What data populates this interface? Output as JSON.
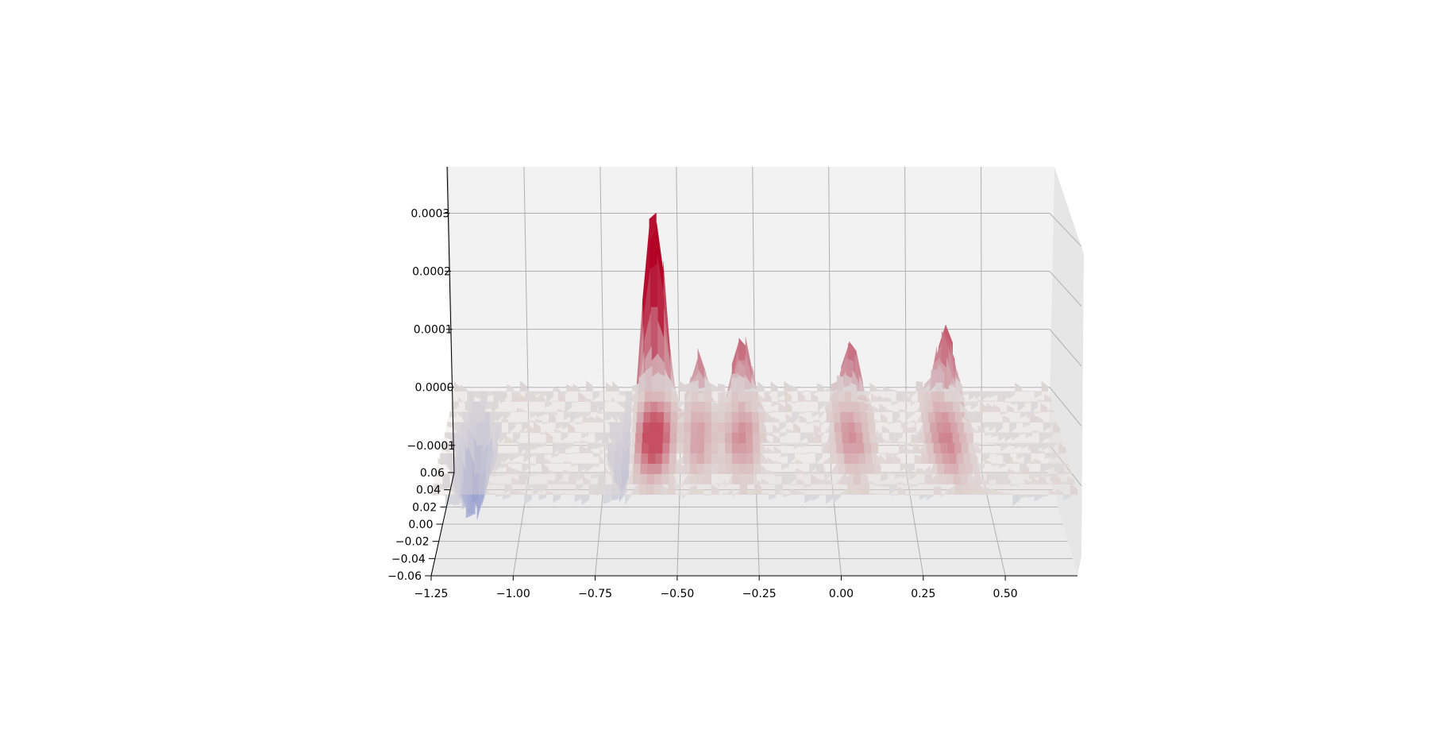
{
  "chart_data": {
    "type": "surface",
    "projection": "3d",
    "colormap": "coolwarm",
    "colors": {
      "low": "#3b4cc0",
      "mid": "#dddddd",
      "high": "#b40426",
      "pane": "#f2f2f2",
      "grid": "#b0b0b0",
      "axis": "#000000"
    },
    "title": "",
    "xlabel": "",
    "ylabel": "",
    "zlabel": "",
    "grid": true,
    "x_ticks": [
      "−1.25",
      "−1.00",
      "−0.75",
      "−0.50",
      "−0.25",
      "0.00",
      "0.25",
      "0.50"
    ],
    "x_tick_values": [
      -1.25,
      -1.0,
      -0.75,
      -0.5,
      -0.25,
      0.0,
      0.25,
      0.5
    ],
    "xlim": [
      -1.25,
      0.72
    ],
    "y_ticks": [
      "0.06",
      "0.04",
      "0.02",
      "0.00",
      "−0.02",
      "−0.04",
      "−0.06"
    ],
    "y_tick_values": [
      0.06,
      0.04,
      0.02,
      0.0,
      -0.02,
      -0.04,
      -0.06
    ],
    "ylim": [
      -0.06,
      0.06
    ],
    "z_ticks": [
      "−0.0001",
      "0.0000",
      "0.0001",
      "0.0002",
      "0.0003"
    ],
    "z_tick_values": [
      -0.0001,
      0.0,
      0.0001,
      0.0002,
      0.0003
    ],
    "zlim": [
      -0.00014,
      0.00038
    ],
    "surface_features": [
      {
        "x": -0.6,
        "z": 0.0003,
        "kind": "peak"
      },
      {
        "x": -0.55,
        "z": 0.00024,
        "kind": "peak"
      },
      {
        "x": -0.45,
        "z": 0.00018,
        "kind": "peak"
      },
      {
        "x": -0.3,
        "z": 0.00017,
        "kind": "peak"
      },
      {
        "x": 0.05,
        "z": 0.00016,
        "kind": "peak"
      },
      {
        "x": 0.35,
        "z": 0.0002,
        "kind": "peak"
      },
      {
        "x": -0.65,
        "z": -0.00013,
        "kind": "trough"
      },
      {
        "x": -0.5,
        "z": -0.00014,
        "kind": "trough"
      },
      {
        "x": -1.15,
        "z": -0.00012,
        "kind": "trough"
      }
    ],
    "baseline_z": 0.0
  }
}
